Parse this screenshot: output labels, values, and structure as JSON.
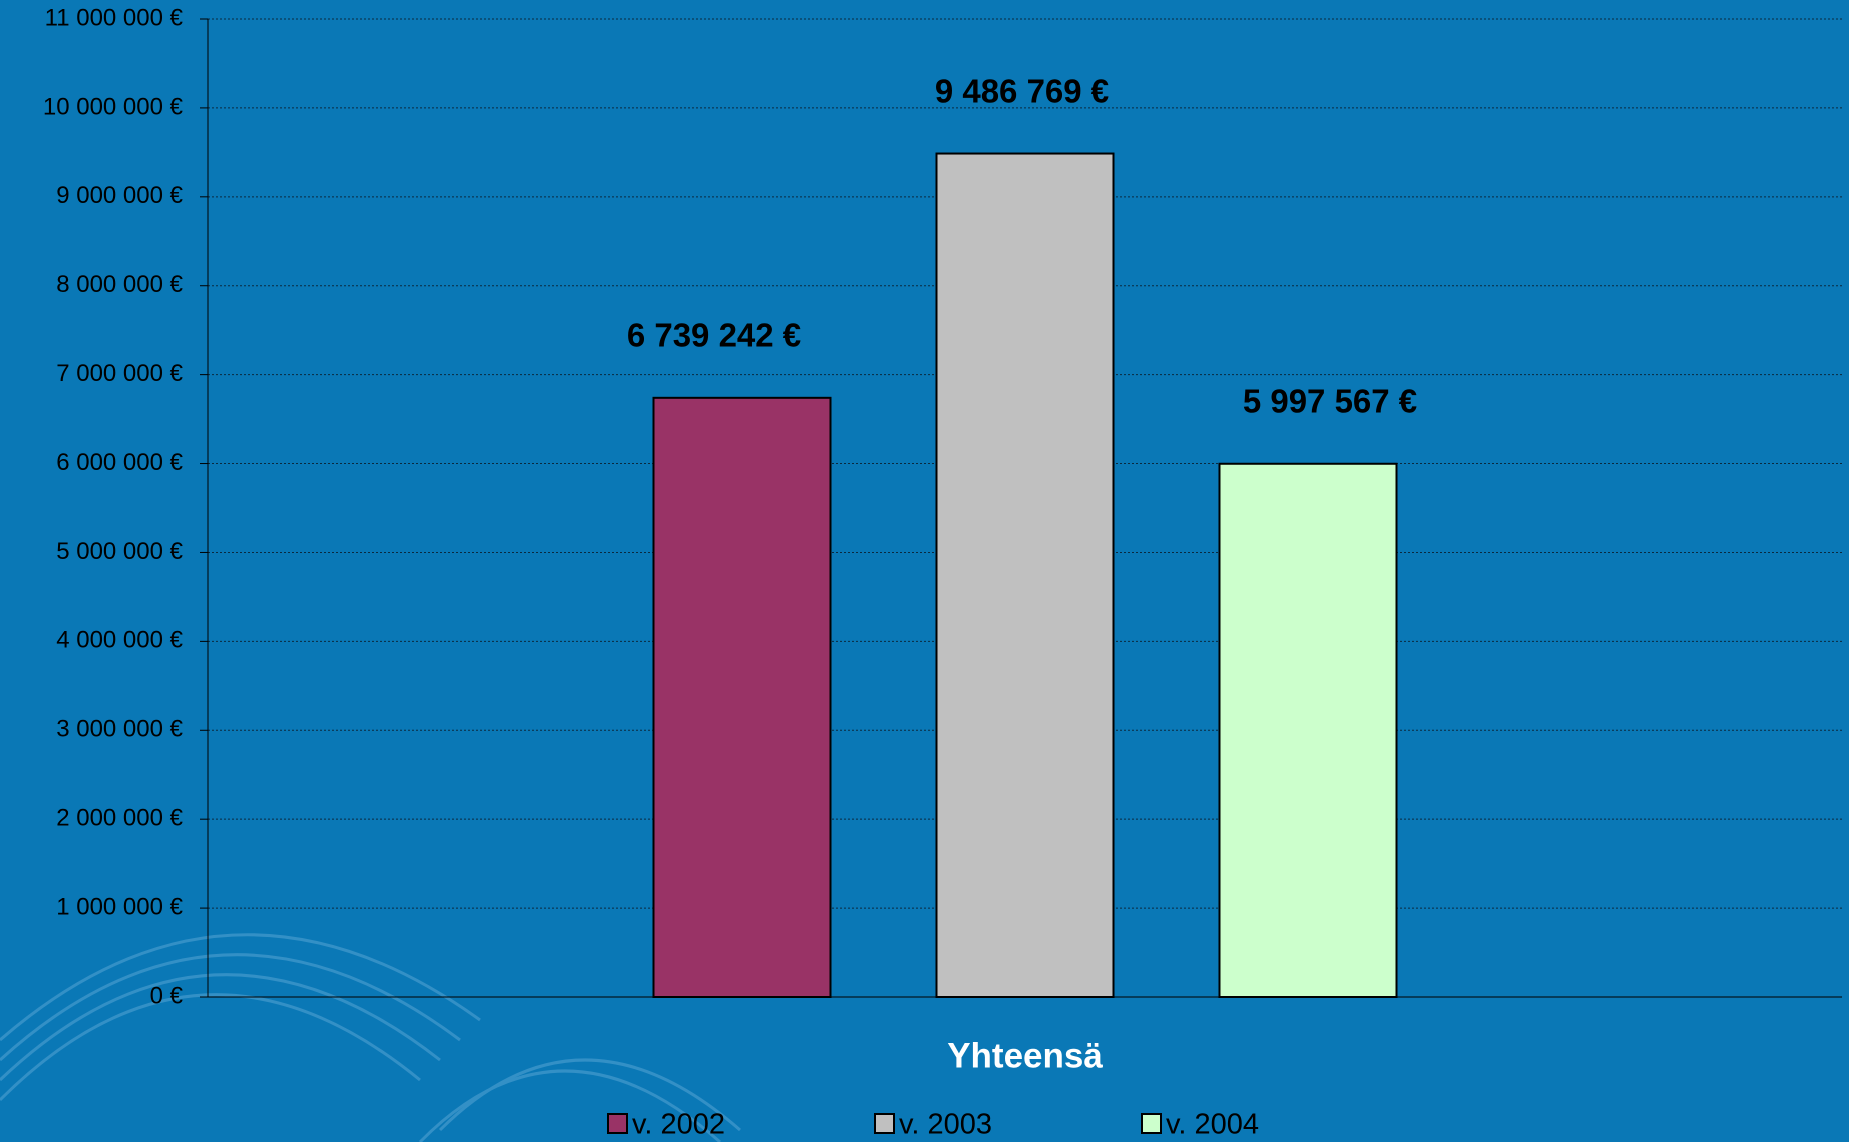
{
  "chart_data": {
    "type": "bar",
    "categories": [
      "Yhteensä"
    ],
    "series": [
      {
        "name": "v. 2002",
        "color": "#993366",
        "values": [
          6739242
        ],
        "value_labels": [
          "6 739 242 €"
        ]
      },
      {
        "name": "v. 2003",
        "color": "#c0c0c0",
        "values": [
          9486769
        ],
        "value_labels": [
          "9 486 769 €"
        ]
      },
      {
        "name": "v. 2004",
        "color": "#ccffcc",
        "values": [
          5997567
        ],
        "value_labels": [
          "5 997 567 €"
        ]
      }
    ],
    "ylim": [
      0,
      11000000
    ],
    "yticks": [
      {
        "value": 0,
        "label": "0 €"
      },
      {
        "value": 1000000,
        "label": "1 000 000 €"
      },
      {
        "value": 2000000,
        "label": "2 000 000 €"
      },
      {
        "value": 3000000,
        "label": "3 000 000 €"
      },
      {
        "value": 4000000,
        "label": "4 000 000 €"
      },
      {
        "value": 5000000,
        "label": "5 000 000 €"
      },
      {
        "value": 6000000,
        "label": "6 000 000 €"
      },
      {
        "value": 7000000,
        "label": "7 000 000 €"
      },
      {
        "value": 8000000,
        "label": "8 000 000 €"
      },
      {
        "value": 9000000,
        "label": "9 000 000 €"
      },
      {
        "value": 10000000,
        "label": "10 000 000 €"
      },
      {
        "value": 11000000,
        "label": "11 000 000 €"
      }
    ],
    "grid": true,
    "legend": "bottom"
  }
}
